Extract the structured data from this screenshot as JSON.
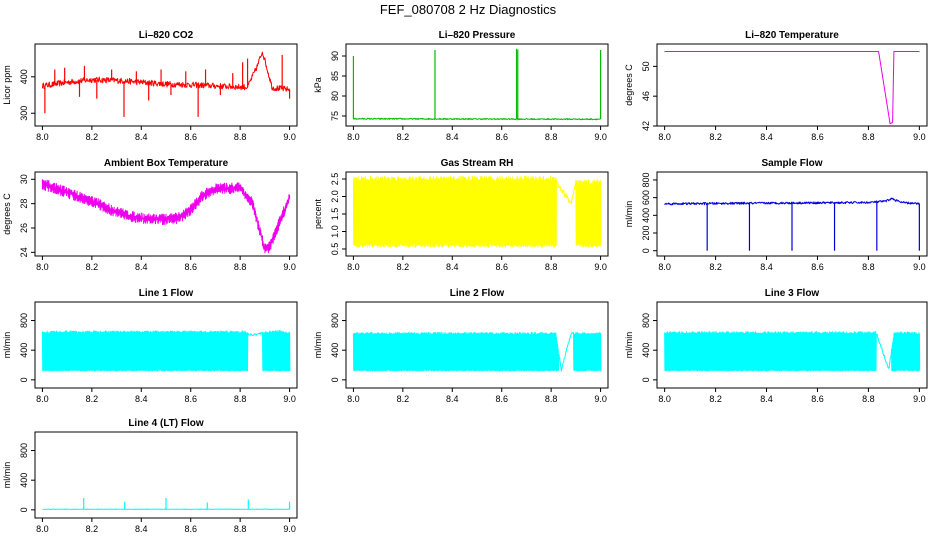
{
  "figure": {
    "title": "FEF_080708  2 Hz Diagnostics"
  },
  "chart_data": [
    {
      "type": "line",
      "id": "co2",
      "title": "Li–820 CO2",
      "ylabel": "Licor ppm",
      "xlabel": "",
      "color": "#ff0000",
      "xlim": [
        7.97,
        9.03
      ],
      "ylim": [
        265,
        490
      ],
      "xticks": [
        "8.0",
        "8.2",
        "8.4",
        "8.6",
        "8.8",
        "9.0"
      ],
      "yticks": [
        "300",
        "400"
      ],
      "series": [
        {
          "name": "CO2",
          "x": [
            8.0,
            8.1,
            8.2,
            8.3,
            8.4,
            8.5,
            8.6,
            8.7,
            8.8,
            8.83,
            8.87,
            8.89,
            8.93,
            9.0
          ],
          "values": [
            375,
            385,
            392,
            390,
            385,
            380,
            378,
            375,
            372,
            372,
            430,
            470,
            370,
            365
          ]
        }
      ],
      "spikes": [
        [
          8.01,
          300
        ],
        [
          8.05,
          420
        ],
        [
          8.09,
          425
        ],
        [
          8.15,
          345
        ],
        [
          8.17,
          430
        ],
        [
          8.22,
          340
        ],
        [
          8.28,
          420
        ],
        [
          8.33,
          290
        ],
        [
          8.38,
          415
        ],
        [
          8.43,
          335
        ],
        [
          8.48,
          420
        ],
        [
          8.52,
          350
        ],
        [
          8.58,
          415
        ],
        [
          8.63,
          290
        ],
        [
          8.66,
          420
        ],
        [
          8.72,
          350
        ],
        [
          8.77,
          410
        ],
        [
          8.81,
          440
        ],
        [
          8.83,
          450
        ],
        [
          8.97,
          460
        ],
        [
          9.0,
          340
        ]
      ]
    },
    {
      "type": "line",
      "id": "pressure",
      "title": "Li–820 Pressure",
      "ylabel": "kPa",
      "xlabel": "",
      "color": "#00bb00",
      "xlim": [
        7.97,
        9.03
      ],
      "ylim": [
        72.5,
        93
      ],
      "xticks": [
        "8.0",
        "8.2",
        "8.4",
        "8.6",
        "8.8",
        "9.0"
      ],
      "yticks": [
        "75",
        "80",
        "85",
        "90"
      ],
      "series": [
        {
          "name": "Pressure",
          "x": [
            8.0,
            9.0
          ],
          "values": [
            74.3,
            74.2
          ]
        }
      ],
      "spikes": [
        [
          8.0,
          90
        ],
        [
          8.33,
          91.5
        ],
        [
          8.66,
          91.8
        ],
        [
          8.665,
          91.6
        ],
        [
          9.0,
          91.5
        ]
      ]
    },
    {
      "type": "line",
      "id": "temperature",
      "title": "Li–820 Temperature",
      "ylabel": "degrees C",
      "xlabel": "",
      "color": "#ee00ee",
      "xlim": [
        7.97,
        9.03
      ],
      "ylim": [
        42,
        53
      ],
      "xticks": [
        "8.0",
        "8.2",
        "8.4",
        "8.6",
        "8.8",
        "9.0"
      ],
      "yticks": [
        "42",
        "46",
        "50"
      ],
      "series": [
        {
          "name": "Temperature",
          "x": [
            8.0,
            8.84,
            8.885,
            8.895,
            8.9,
            9.0
          ],
          "values": [
            52.0,
            52.0,
            42.3,
            42.5,
            52.0,
            52.0
          ]
        }
      ],
      "spikes": []
    },
    {
      "type": "line",
      "id": "ambient",
      "title": "Ambient Box Temperature",
      "ylabel": "degrees C",
      "xlabel": "",
      "color": "#ee00ee",
      "xlim": [
        7.97,
        9.03
      ],
      "ylim": [
        23.7,
        30.6
      ],
      "xticks": [
        "8.0",
        "8.2",
        "8.4",
        "8.6",
        "8.8",
        "9.0"
      ],
      "yticks": [
        "24",
        "26",
        "28",
        "30"
      ],
      "series": [
        {
          "name": "Ambient",
          "x": [
            8.0,
            8.05,
            8.1,
            8.2,
            8.3,
            8.35,
            8.4,
            8.5,
            8.55,
            8.6,
            8.65,
            8.7,
            8.8,
            8.85,
            8.9,
            8.92,
            9.0
          ],
          "values": [
            29.6,
            29.3,
            28.9,
            28.2,
            27.3,
            27.0,
            26.8,
            26.7,
            26.8,
            27.5,
            28.7,
            29.2,
            29.3,
            28.0,
            24.2,
            24.5,
            28.5
          ]
        }
      ],
      "spikes": []
    },
    {
      "type": "line",
      "id": "rh",
      "title": "Gas Stream RH",
      "ylabel": "percent",
      "xlabel": "",
      "color": "#ffff00",
      "xlim": [
        7.97,
        9.03
      ],
      "ylim": [
        0.3,
        2.7
      ],
      "xticks": [
        "8.0",
        "8.2",
        "8.4",
        "8.6",
        "8.8",
        "9.0"
      ],
      "yticks": [
        "0.5",
        "1.0",
        "1.5",
        "2.0",
        "2.5"
      ],
      "series": [
        {
          "name": "RH",
          "x": [
            8.0,
            8.82,
            8.83,
            8.88,
            8.9,
            9.0
          ],
          "values": [
            2.5,
            2.5,
            2.3,
            1.8,
            2.4,
            2.4
          ]
        }
      ],
      "spikes": []
    },
    {
      "type": "line",
      "id": "sample",
      "title": "Sample Flow",
      "ylabel": "ml/min",
      "xlabel": "",
      "color": "#0000dd",
      "xlim": [
        7.97,
        9.03
      ],
      "ylim": [
        -60,
        890
      ],
      "xticks": [
        "8.0",
        "8.2",
        "8.4",
        "8.6",
        "8.8",
        "9.0"
      ],
      "yticks": [
        "0",
        "200",
        "400",
        "600",
        "800"
      ],
      "series": [
        {
          "name": "Sample",
          "x": [
            8.0,
            8.5,
            8.8,
            8.87,
            8.89,
            8.93,
            9.0
          ],
          "values": [
            530,
            540,
            545,
            560,
            590,
            545,
            530
          ]
        }
      ],
      "spikes": [
        [
          8.167,
          0
        ],
        [
          8.333,
          0
        ],
        [
          8.5,
          0
        ],
        [
          8.667,
          0
        ],
        [
          8.833,
          0
        ],
        [
          9.0,
          0
        ]
      ]
    },
    {
      "type": "line",
      "id": "line1",
      "title": "Line 1 Flow",
      "ylabel": "ml/min",
      "xlabel": "",
      "color": "#00ffff",
      "xlim": [
        7.97,
        9.03
      ],
      "ylim": [
        -110,
        1050
      ],
      "xticks": [
        "8.0",
        "8.2",
        "8.4",
        "8.6",
        "8.8",
        "9.0"
      ],
      "yticks": [
        "0",
        "400",
        "800"
      ],
      "series": [
        {
          "name": "Line 1",
          "x": [
            8.0,
            8.82,
            8.84,
            8.88,
            8.92,
            8.95,
            9.0
          ],
          "values": [
            640,
            640,
            600,
            620,
            640,
            650,
            630
          ]
        }
      ],
      "spikes": []
    },
    {
      "type": "line",
      "id": "line2",
      "title": "Line 2 Flow",
      "ylabel": "ml/min",
      "xlabel": "",
      "color": "#00ffff",
      "xlim": [
        7.97,
        9.03
      ],
      "ylim": [
        -110,
        1050
      ],
      "xticks": [
        "8.0",
        "8.2",
        "8.4",
        "8.6",
        "8.8",
        "9.0"
      ],
      "yticks": [
        "0",
        "400",
        "800"
      ],
      "series": [
        {
          "name": "Line 2",
          "x": [
            8.0,
            8.82,
            8.84,
            8.88,
            8.92,
            9.0
          ],
          "values": [
            620,
            620,
            120,
            620,
            620,
            620
          ]
        }
      ],
      "spikes": []
    },
    {
      "type": "line",
      "id": "line3",
      "title": "Line 3 Flow",
      "ylabel": "ml/min",
      "xlabel": "",
      "color": "#00ffff",
      "xlim": [
        7.97,
        9.03
      ],
      "ylim": [
        -110,
        1050
      ],
      "xticks": [
        "8.0",
        "8.2",
        "8.4",
        "8.6",
        "8.8",
        "9.0"
      ],
      "yticks": [
        "0",
        "400",
        "800"
      ],
      "series": [
        {
          "name": "Line 3",
          "x": [
            8.0,
            8.83,
            8.88,
            8.9,
            9.0
          ],
          "values": [
            630,
            630,
            130,
            630,
            620
          ]
        }
      ],
      "spikes": []
    },
    {
      "type": "line",
      "id": "line4",
      "title": "Line 4 (LT) Flow",
      "ylabel": "ml/min",
      "xlabel": "",
      "color": "#00ffff",
      "xlim": [
        7.97,
        9.03
      ],
      "ylim": [
        -110,
        1050
      ],
      "xticks": [
        "8.0",
        "8.2",
        "8.4",
        "8.6",
        "8.8",
        "9.0"
      ],
      "yticks": [
        "0",
        "400",
        "800"
      ],
      "series": [
        {
          "name": "Line 4 (LT)",
          "x": [
            8.0,
            9.0
          ],
          "values": [
            8,
            8
          ]
        }
      ],
      "spikes": [
        [
          8.167,
          160
        ],
        [
          8.333,
          110
        ],
        [
          8.5,
          160
        ],
        [
          8.667,
          100
        ],
        [
          8.833,
          140
        ],
        [
          9.0,
          110
        ]
      ]
    }
  ]
}
